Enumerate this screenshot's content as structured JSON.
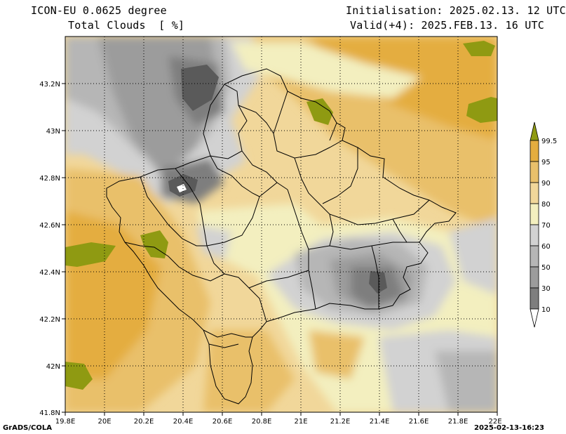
{
  "header": {
    "model_line": "ICON-EU 0.0625 degree",
    "variable_line": "Total Clouds  [ %]",
    "init_line": "Initialisation: 2025.02.13. 12 UTC",
    "valid_line": "Valid(+4): 2025.FEB.13. 16 UTC"
  },
  "axes": {
    "lat_labels": [
      "43.2N",
      "43N",
      "42.8N",
      "42.6N",
      "42.4N",
      "42.2N",
      "42N",
      "41.8N"
    ],
    "lon_labels": [
      "19.8E",
      "20E",
      "20.2E",
      "20.4E",
      "20.6E",
      "20.8E",
      "21E",
      "21.2E",
      "21.4E",
      "21.6E",
      "21.8E",
      "22E"
    ]
  },
  "colorbar": {
    "levels": [
      "99.5",
      "95",
      "90",
      "80",
      "70",
      "60",
      "50",
      "30",
      "10"
    ],
    "colors": {
      "c10": "#5a5a5a",
      "c30": "#7e7e7e",
      "c50": "#9c9c9c",
      "c60": "#b6b6b6",
      "c70": "#d2d2d2",
      "c80": "#f3efbf",
      "c90": "#f1d79a",
      "c95": "#e9c06b",
      "c99": "#e4ad3f",
      "c100": "#8f9a12"
    }
  },
  "footer": {
    "credit": "GrADS/COLA",
    "timestamp": "2025-02-13-16:23"
  }
}
